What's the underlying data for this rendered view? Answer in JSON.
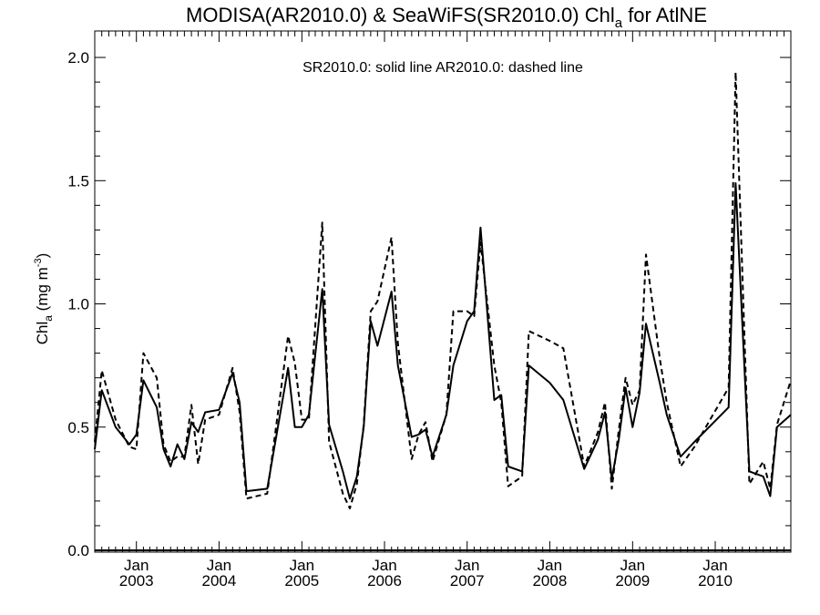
{
  "chart_data": {
    "type": "line",
    "title": {
      "prefix": "MODISA(AR2010.0) & SeaWiFS(SR2010.0)  Chl",
      "subscript": "a",
      "suffix": " for AtlNE"
    },
    "annotation": "SR2010.0: solid line   AR2010.0: dashed line",
    "ylabel": {
      "prefix": "Chl",
      "subscript": "a",
      "mid": " (mg m",
      "superscript": "-3",
      "suffix": ")"
    },
    "xlim": [
      "2002-07-01",
      "2010-12-01"
    ],
    "ylim": [
      0,
      2.1
    ],
    "y_ticks": [
      {
        "value": 0.0,
        "label": "0.0"
      },
      {
        "value": 0.5,
        "label": "0.5"
      },
      {
        "value": 1.0,
        "label": "1.0"
      },
      {
        "value": 1.5,
        "label": "1.5"
      },
      {
        "value": 2.0,
        "label": "2.0"
      }
    ],
    "x_ticks": [
      {
        "date": "2003-01-01",
        "month": "Jan",
        "year": "2003"
      },
      {
        "date": "2004-01-01",
        "month": "Jan",
        "year": "2004"
      },
      {
        "date": "2005-01-01",
        "month": "Jan",
        "year": "2005"
      },
      {
        "date": "2006-01-01",
        "month": "Jan",
        "year": "2006"
      },
      {
        "date": "2007-01-01",
        "month": "Jan",
        "year": "2007"
      },
      {
        "date": "2008-01-01",
        "month": "Jan",
        "year": "2008"
      },
      {
        "date": "2009-01-01",
        "month": "Jan",
        "year": "2009"
      },
      {
        "date": "2010-01-01",
        "month": "Jan",
        "year": "2010"
      }
    ],
    "grid": false,
    "series": [
      {
        "line_style": "solid",
        "points": [
          [
            "2002-07-01",
            0.41
          ],
          [
            "2002-08-01",
            0.65
          ],
          [
            "2002-10-01",
            0.5
          ],
          [
            "2002-12-01",
            0.43
          ],
          [
            "2003-01-01",
            0.47
          ],
          [
            "2003-02-01",
            0.69
          ],
          [
            "2003-04-01",
            0.58
          ],
          [
            "2003-05-01",
            0.41
          ],
          [
            "2003-06-01",
            0.34
          ],
          [
            "2003-07-01",
            0.43
          ],
          [
            "2003-08-01",
            0.37
          ],
          [
            "2003-09-01",
            0.52
          ],
          [
            "2003-10-01",
            0.48
          ],
          [
            "2003-11-01",
            0.56
          ],
          [
            "2004-01-01",
            0.57
          ],
          [
            "2004-03-01",
            0.72
          ],
          [
            "2004-04-01",
            0.6
          ],
          [
            "2004-05-01",
            0.24
          ],
          [
            "2004-08-01",
            0.25
          ],
          [
            "2004-11-01",
            0.74
          ],
          [
            "2004-12-01",
            0.5
          ],
          [
            "2005-01-01",
            0.5
          ],
          [
            "2005-02-01",
            0.55
          ],
          [
            "2005-04-01",
            1.06
          ],
          [
            "2005-05-01",
            0.51
          ],
          [
            "2005-07-01",
            0.32
          ],
          [
            "2005-08-01",
            0.21
          ],
          [
            "2005-09-01",
            0.3
          ],
          [
            "2005-10-01",
            0.5
          ],
          [
            "2005-11-01",
            0.93
          ],
          [
            "2005-12-01",
            0.83
          ],
          [
            "2006-02-01",
            1.05
          ],
          [
            "2006-03-01",
            0.75
          ],
          [
            "2006-05-01",
            0.46
          ],
          [
            "2006-06-01",
            0.47
          ],
          [
            "2006-07-01",
            0.49
          ],
          [
            "2006-08-01",
            0.38
          ],
          [
            "2006-10-01",
            0.55
          ],
          [
            "2006-11-01",
            0.75
          ],
          [
            "2007-01-01",
            0.93
          ],
          [
            "2007-02-01",
            0.97
          ],
          [
            "2007-03-01",
            1.31
          ],
          [
            "2007-05-01",
            0.61
          ],
          [
            "2007-06-01",
            0.63
          ],
          [
            "2007-07-01",
            0.34
          ],
          [
            "2007-09-01",
            0.32
          ],
          [
            "2007-10-01",
            0.75
          ],
          [
            "2008-01-01",
            0.68
          ],
          [
            "2008-03-01",
            0.61
          ],
          [
            "2008-06-01",
            0.33
          ],
          [
            "2008-08-01",
            0.45
          ],
          [
            "2008-09-01",
            0.56
          ],
          [
            "2008-10-01",
            0.29
          ],
          [
            "2008-11-01",
            0.45
          ],
          [
            "2008-12-01",
            0.66
          ],
          [
            "2009-01-01",
            0.5
          ],
          [
            "2009-02-01",
            0.64
          ],
          [
            "2009-03-01",
            0.92
          ],
          [
            "2009-05-01",
            0.68
          ],
          [
            "2009-06-01",
            0.55
          ],
          [
            "2009-08-01",
            0.38
          ],
          [
            "2009-10-01",
            0.44
          ],
          [
            "2010-03-01",
            0.58
          ],
          [
            "2010-04-01",
            1.49
          ],
          [
            "2010-06-01",
            0.32
          ],
          [
            "2010-08-01",
            0.3
          ],
          [
            "2010-09-01",
            0.22
          ],
          [
            "2010-10-01",
            0.5
          ],
          [
            "2010-12-01",
            0.55
          ]
        ]
      },
      {
        "line_style": "dashed",
        "points": [
          [
            "2002-07-01",
            0.44
          ],
          [
            "2002-08-01",
            0.73
          ],
          [
            "2002-10-01",
            0.53
          ],
          [
            "2002-12-01",
            0.42
          ],
          [
            "2003-01-01",
            0.41
          ],
          [
            "2003-02-01",
            0.8
          ],
          [
            "2003-04-01",
            0.7
          ],
          [
            "2003-05-01",
            0.43
          ],
          [
            "2003-06-01",
            0.36
          ],
          [
            "2003-07-01",
            0.38
          ],
          [
            "2003-08-01",
            0.38
          ],
          [
            "2003-09-01",
            0.59
          ],
          [
            "2003-10-01",
            0.35
          ],
          [
            "2003-11-01",
            0.53
          ],
          [
            "2004-01-01",
            0.55
          ],
          [
            "2004-03-01",
            0.74
          ],
          [
            "2004-04-01",
            0.56
          ],
          [
            "2004-05-01",
            0.21
          ],
          [
            "2004-08-01",
            0.23
          ],
          [
            "2004-11-01",
            0.87
          ],
          [
            "2004-12-01",
            0.76
          ],
          [
            "2005-01-01",
            0.53
          ],
          [
            "2005-02-01",
            0.53
          ],
          [
            "2005-04-01",
            1.33
          ],
          [
            "2005-05-01",
            0.44
          ],
          [
            "2005-07-01",
            0.23
          ],
          [
            "2005-08-01",
            0.17
          ],
          [
            "2005-09-01",
            0.27
          ],
          [
            "2005-10-01",
            0.51
          ],
          [
            "2005-11-01",
            0.97
          ],
          [
            "2005-12-01",
            1.01
          ],
          [
            "2006-02-01",
            1.27
          ],
          [
            "2006-03-01",
            0.84
          ],
          [
            "2006-05-01",
            0.37
          ],
          [
            "2006-06-01",
            0.47
          ],
          [
            "2006-07-01",
            0.52
          ],
          [
            "2006-08-01",
            0.36
          ],
          [
            "2006-10-01",
            0.55
          ],
          [
            "2006-11-01",
            0.97
          ],
          [
            "2007-01-01",
            0.97
          ],
          [
            "2007-02-01",
            0.95
          ],
          [
            "2007-03-01",
            1.25
          ],
          [
            "2007-05-01",
            0.75
          ],
          [
            "2007-06-01",
            0.6
          ],
          [
            "2007-07-01",
            0.26
          ],
          [
            "2007-09-01",
            0.3
          ],
          [
            "2007-10-01",
            0.89
          ],
          [
            "2008-01-01",
            0.85
          ],
          [
            "2008-03-01",
            0.82
          ],
          [
            "2008-06-01",
            0.34
          ],
          [
            "2008-08-01",
            0.48
          ],
          [
            "2008-09-01",
            0.6
          ],
          [
            "2008-10-01",
            0.25
          ],
          [
            "2008-11-01",
            0.49
          ],
          [
            "2008-12-01",
            0.7
          ],
          [
            "2009-01-01",
            0.59
          ],
          [
            "2009-02-01",
            0.65
          ],
          [
            "2009-03-01",
            1.2
          ],
          [
            "2009-05-01",
            0.78
          ],
          [
            "2009-06-01",
            0.6
          ],
          [
            "2009-08-01",
            0.34
          ],
          [
            "2009-10-01",
            0.42
          ],
          [
            "2010-03-01",
            0.66
          ],
          [
            "2010-04-01",
            1.94
          ],
          [
            "2010-06-01",
            0.27
          ],
          [
            "2010-08-01",
            0.36
          ],
          [
            "2010-09-01",
            0.25
          ],
          [
            "2010-10-01",
            0.51
          ],
          [
            "2010-12-01",
            0.69
          ]
        ]
      }
    ]
  }
}
